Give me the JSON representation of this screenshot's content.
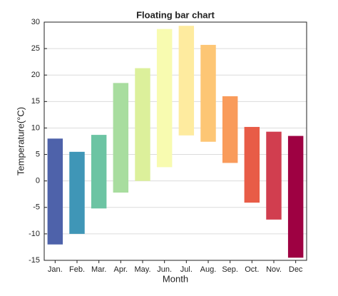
{
  "chart_data": {
    "type": "floating-bar",
    "title": "Floating bar chart",
    "x_label": "Month",
    "y_label": "Temperature(°C)",
    "categories": [
      "Jan.",
      "Feb.",
      "Mar.",
      "Apr.",
      "May.",
      "Jun.",
      "Jul.",
      "Aug.",
      "Sep.",
      "Oct.",
      "Nov.",
      "Dec"
    ],
    "low": [
      -12,
      -10,
      -5.2,
      -2.2,
      0,
      2.6,
      8.6,
      7.4,
      3.4,
      -4.1,
      -7.3,
      -14.5
    ],
    "high": [
      8,
      5.5,
      8.7,
      18.5,
      21.3,
      28.7,
      29.3,
      25.7,
      16,
      10.2,
      9.3,
      8.5
    ],
    "colors": [
      "#4e62aa",
      "#3f96b7",
      "#6cc4a3",
      "#a8dd9f",
      "#dcf09b",
      "#f8fbb0",
      "#feeb9f",
      "#fdc675",
      "#f99b5b",
      "#e85c47",
      "#d13e4f",
      "#9e0142"
    ],
    "ylim": [
      -15,
      30
    ],
    "yticks": [
      -15,
      -10,
      -5,
      0,
      5,
      10,
      15,
      20,
      25,
      30
    ],
    "grid": true
  }
}
